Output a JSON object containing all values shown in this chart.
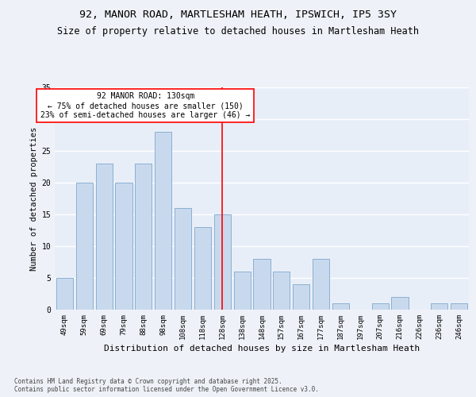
{
  "title_line1": "92, MANOR ROAD, MARTLESHAM HEATH, IPSWICH, IP5 3SY",
  "title_line2": "Size of property relative to detached houses in Martlesham Heath",
  "xlabel": "Distribution of detached houses by size in Martlesham Heath",
  "ylabel": "Number of detached properties",
  "categories": [
    "49sqm",
    "59sqm",
    "69sqm",
    "79sqm",
    "88sqm",
    "98sqm",
    "108sqm",
    "118sqm",
    "128sqm",
    "138sqm",
    "148sqm",
    "157sqm",
    "167sqm",
    "177sqm",
    "187sqm",
    "197sqm",
    "207sqm",
    "216sqm",
    "226sqm",
    "236sqm",
    "246sqm"
  ],
  "values": [
    5,
    20,
    23,
    20,
    23,
    28,
    16,
    13,
    15,
    6,
    8,
    6,
    4,
    8,
    1,
    0,
    1,
    2,
    0,
    1,
    1
  ],
  "bar_color": "#c9d9ed",
  "bar_edgecolor": "#8ab0d0",
  "ref_line_index": 8,
  "ref_line_label": "92 MANOR ROAD: 130sqm",
  "ref_line_note1": "← 75% of detached houses are smaller (150)",
  "ref_line_note2": "23% of semi-detached houses are larger (46) →",
  "ylim": [
    0,
    35
  ],
  "yticks": [
    0,
    5,
    10,
    15,
    20,
    25,
    30,
    35
  ],
  "background_color": "#e8eef8",
  "fig_background_color": "#eef2f8",
  "grid_color": "#ffffff",
  "footnote": "Contains HM Land Registry data © Crown copyright and database right 2025.\nContains public sector information licensed under the Open Government Licence v3.0.",
  "title_fontsize": 9.5,
  "subtitle_fontsize": 8.5,
  "xlabel_fontsize": 8,
  "ylabel_fontsize": 7.5,
  "tick_fontsize": 6.5,
  "annotation_fontsize": 7,
  "footnote_fontsize": 5.5
}
